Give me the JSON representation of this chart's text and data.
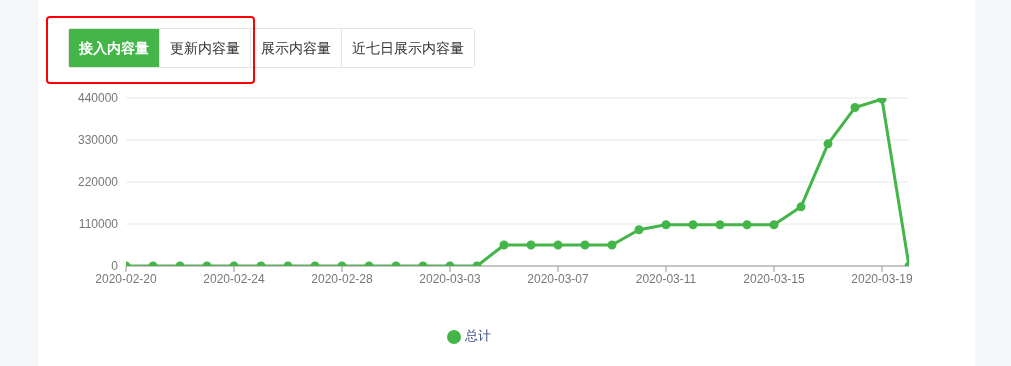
{
  "chart_data": {
    "type": "line",
    "categories": [
      "2020-02-20",
      null,
      null,
      null,
      "2020-02-24",
      null,
      null,
      null,
      "2020-02-28",
      null,
      null,
      null,
      "2020-03-03",
      null,
      null,
      null,
      "2020-03-07",
      null,
      null,
      null,
      "2020-03-11",
      null,
      null,
      null,
      "2020-03-15",
      null,
      null,
      null,
      "2020-03-19",
      null
    ],
    "series": [
      {
        "name": "总计",
        "color": "#44b549",
        "values": [
          0,
          0,
          0,
          0,
          0,
          0,
          0,
          0,
          0,
          0,
          0,
          0,
          0,
          0,
          55000,
          55000,
          55000,
          55000,
          55000,
          95000,
          108000,
          108000,
          108000,
          108000,
          108000,
          155000,
          320000,
          415000,
          437000,
          0
        ]
      }
    ],
    "ylim": [
      0,
      440000
    ],
    "yticks": [
      0,
      110000,
      220000,
      330000,
      440000
    ],
    "grid": "y",
    "legend": "bottom",
    "marker": "circle",
    "line_style": "solid",
    "annotations": [
      "接入内容量",
      "更新内容量",
      "展示内容量",
      "近七日展示内容量"
    ]
  }
}
